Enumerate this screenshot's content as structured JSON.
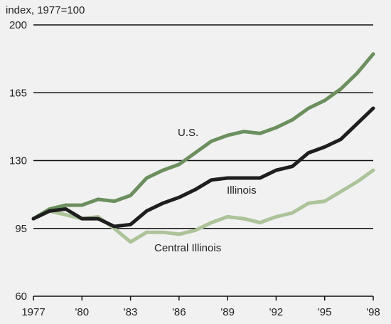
{
  "chart_data": {
    "type": "line",
    "title": "",
    "ylabel": "index, 1977=100",
    "xlabel": "",
    "x": [
      1977,
      1978,
      1979,
      1980,
      1981,
      1982,
      1983,
      1984,
      1985,
      1986,
      1987,
      1988,
      1989,
      1990,
      1991,
      1992,
      1993,
      1994,
      1995,
      1996,
      1997,
      1998
    ],
    "x_tick_values": [
      1977,
      1980,
      1983,
      1986,
      1989,
      1992,
      1995,
      1998
    ],
    "x_tick_labels": [
      "1977",
      "'80",
      "'83",
      "'86",
      "'89",
      "'92",
      "'95",
      "'98"
    ],
    "y_ticks": [
      60,
      95,
      130,
      165,
      200
    ],
    "ylim": [
      60,
      200
    ],
    "grid": "horizontal",
    "series": [
      {
        "name": "U.S.",
        "color": "#6b8f5e",
        "values": [
          100,
          105,
          107,
          107,
          110,
          109,
          112,
          121,
          125,
          128,
          134,
          140,
          143,
          145,
          144,
          147,
          151,
          157,
          161,
          167,
          175,
          185
        ]
      },
      {
        "name": "Illinois",
        "color": "#1e1e1e",
        "values": [
          100,
          104,
          105,
          100,
          100,
          96,
          97,
          104,
          108,
          111,
          115,
          120,
          121,
          121,
          121,
          125,
          127,
          134,
          137,
          141,
          149,
          157
        ]
      },
      {
        "name": "Central Illinois",
        "color": "#adc39a",
        "values": [
          100,
          104,
          102,
          100,
          101,
          95,
          88,
          93,
          93,
          92,
          94,
          98,
          101,
          100,
          98,
          101,
          103,
          108,
          109,
          114,
          119,
          125
        ]
      }
    ]
  }
}
